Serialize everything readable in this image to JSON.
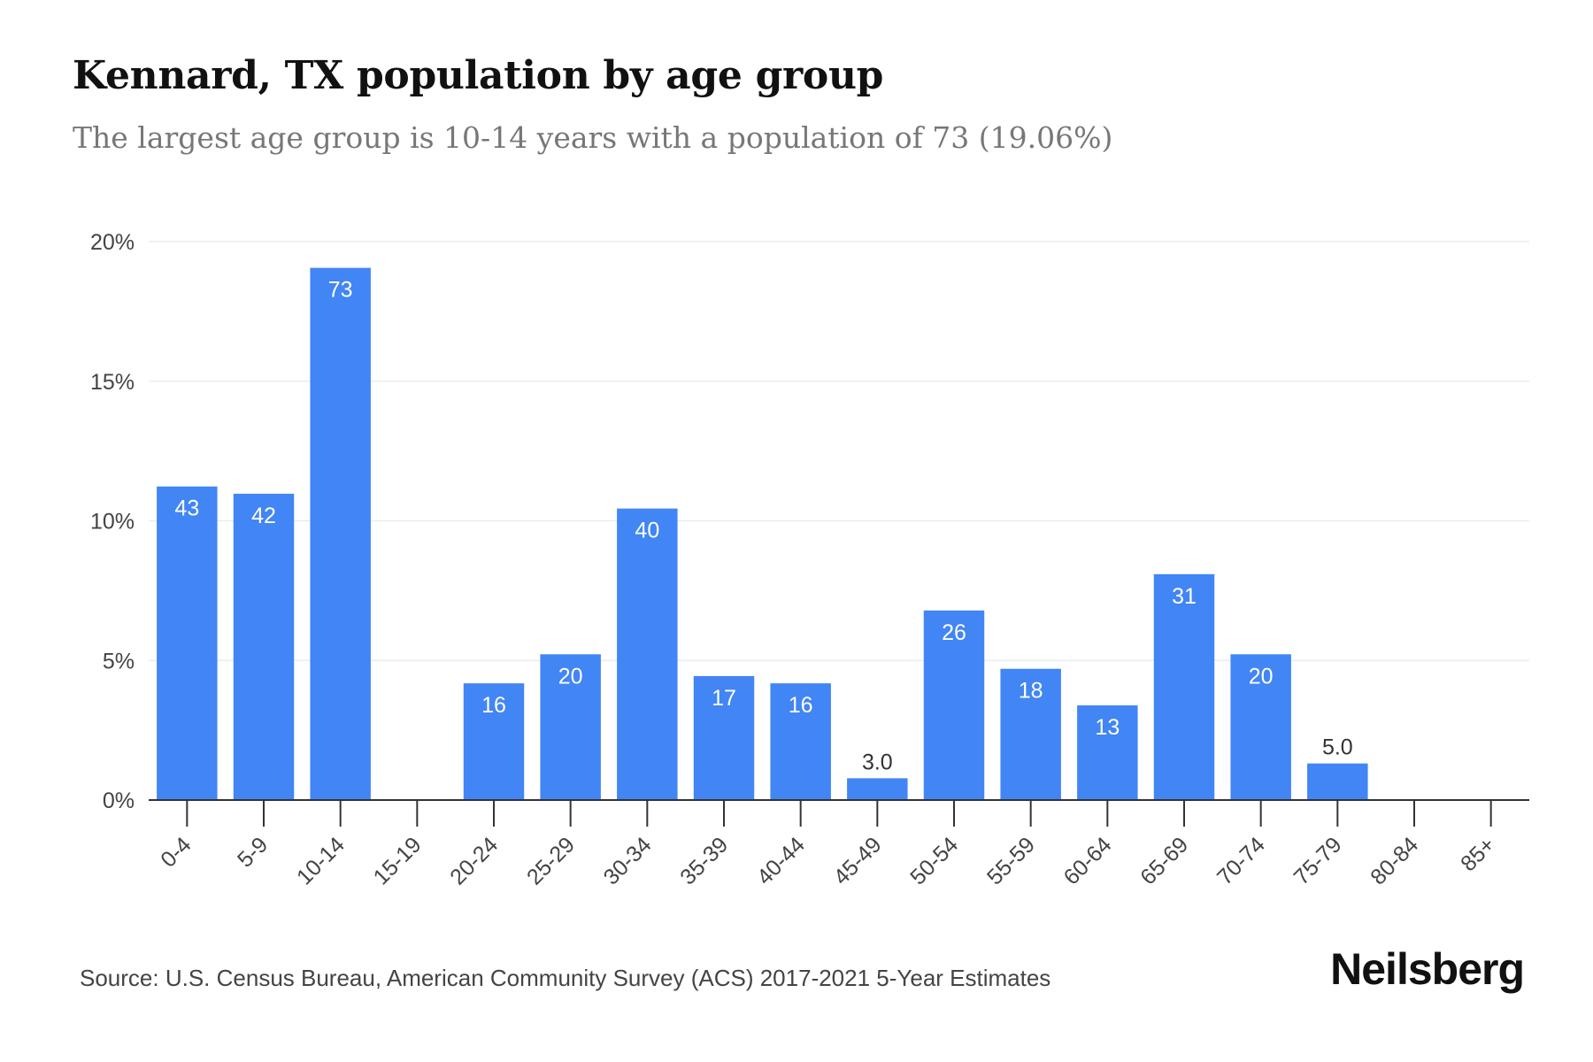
{
  "header": {
    "title": "Kennard, TX population by age group",
    "subtitle": "The largest age group is 10-14 years with a population of 73 (19.06%)"
  },
  "footer": {
    "source": "Source: U.S. Census Bureau, American Community Survey (ACS) 2017-2021 5-Year Estimates",
    "brand": "Neilsberg"
  },
  "chart_data": {
    "type": "bar",
    "categories": [
      "0-4",
      "5-9",
      "10-14",
      "15-19",
      "20-24",
      "25-29",
      "30-34",
      "35-39",
      "40-44",
      "45-49",
      "50-54",
      "55-59",
      "60-64",
      "65-69",
      "70-74",
      "75-79",
      "80-84",
      "85+"
    ],
    "values": [
      11.23,
      10.97,
      19.06,
      0,
      4.18,
      5.22,
      10.44,
      4.44,
      4.18,
      0.78,
      6.79,
      4.7,
      3.39,
      8.09,
      5.22,
      1.31,
      0,
      0
    ],
    "data_labels": [
      "43",
      "42",
      "73",
      "",
      "16",
      "20",
      "40",
      "17",
      "16",
      "3.0",
      "26",
      "18",
      "13",
      "31",
      "20",
      "5.0",
      "",
      ""
    ],
    "yticks": [
      "0%",
      "5%",
      "10%",
      "15%",
      "20%"
    ],
    "ylim": [
      0,
      20
    ],
    "grid": true,
    "legend": "none",
    "bar_color": "#4285f4",
    "title": "Kennard, TX population by age group",
    "subtitle": "The largest age group is 10-14 years with a population of 73 (19.06%)"
  }
}
